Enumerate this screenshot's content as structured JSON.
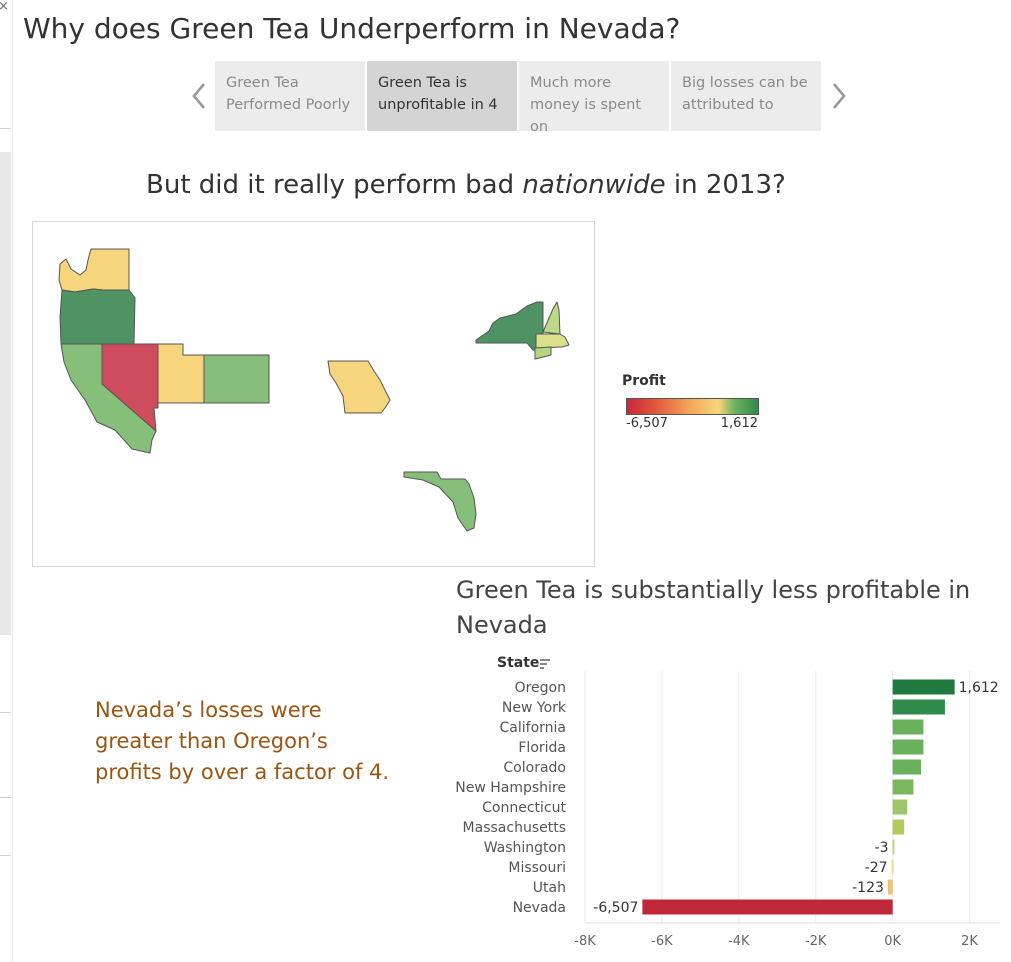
{
  "window": {
    "close_glyph": "×"
  },
  "page_title": "Why does Green Tea Underperform in Nevada?",
  "story_nav": {
    "prev_icon": "chevron-left-icon",
    "next_icon": "chevron-right-icon",
    "points": [
      {
        "label": "Green Tea Performed Poorly",
        "active": false
      },
      {
        "label": "Green Tea is unprofitable in 4",
        "active": true
      },
      {
        "label": "Much more money is spent on",
        "active": false
      },
      {
        "label": "Big losses can be attributed to",
        "active": false
      }
    ]
  },
  "map_section": {
    "subtitle_before": "But did it really perform bad ",
    "subtitle_emph": "nationwide",
    "subtitle_after": " in 2013?",
    "legend": {
      "title": "Profit",
      "min_label": "-6,507",
      "max_label": "1,612"
    },
    "colors": {
      "washington": "#f7d57c",
      "oregon": "#4f9363",
      "california": "#86bf7a",
      "nevada": "#cf4c5c",
      "utah": "#f7d57c",
      "colorado": "#86bf7a",
      "missouri": "#f7d57c",
      "florida": "#86bf7a",
      "new_york": "#4f9363",
      "new_hampshire": "#bed986",
      "massachusetts": "#dbe08d",
      "connecticut": "#b6d57f"
    }
  },
  "annotation": "Nevada’s losses were greater than Oregon’s profits by over a factor of 4.",
  "bar_section": {
    "title": "Green Tea is substantially less profitable in Nevada",
    "axis_header": "State",
    "sort_icon": "sort-descending-icon"
  },
  "chart_data": {
    "type": "bar",
    "orientation": "horizontal",
    "title": "Green Tea is substantially less profitable in Nevada",
    "ylabel": "State",
    "xlabel": "",
    "categories": [
      "Oregon",
      "New York",
      "California",
      "Florida",
      "Colorado",
      "New Hampshire",
      "Connecticut",
      "Massachusetts",
      "Washington",
      "Missouri",
      "Utah",
      "Nevada"
    ],
    "values": [
      1612,
      1360,
      800,
      800,
      740,
      540,
      380,
      300,
      -3,
      -27,
      -123,
      -6507
    ],
    "data_labels": {
      "Oregon": "1,612",
      "Washington": "-3",
      "Missouri": "-27",
      "Utah": "-123",
      "Nevada": "-6,507"
    },
    "colors": [
      "#1f7a3f",
      "#2f8a4b",
      "#6ab15c",
      "#6ab15c",
      "#6ab15c",
      "#7ab75e",
      "#9fc66a",
      "#b2c95e",
      "#c7d87a",
      "#f2dc8a",
      "#f2c36e",
      "#c0283a"
    ],
    "xlim": [
      -8000,
      3000
    ],
    "xticks": [
      -8000,
      -6000,
      -4000,
      -2000,
      0,
      2000
    ],
    "xtick_labels": [
      "-8K",
      "-6K",
      "-4K",
      "-2K",
      "0K",
      "2K"
    ],
    "grid": true
  }
}
